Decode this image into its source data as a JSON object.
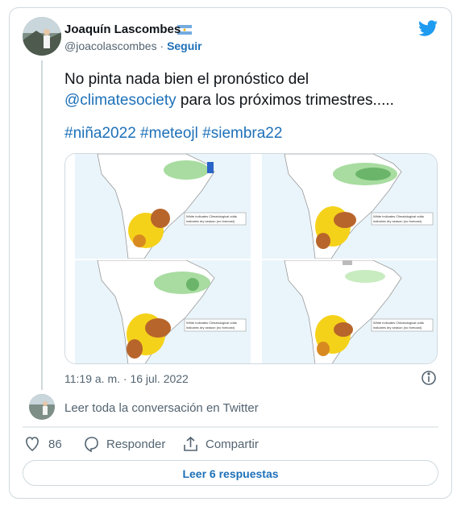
{
  "tweet": {
    "author": {
      "name": "Joaquín Lascombes",
      "handle": "@joacolascombes",
      "follow": "Seguir"
    },
    "text": {
      "line1": "No pinta nada bien el pronóstico del",
      "mention": "@climatesociety",
      "line2": "para los próximos trimestres.....",
      "hashtags": [
        "#niña2022",
        "#meteojl",
        "#siembra22"
      ]
    },
    "image": {
      "legend": [
        "White indicates Climatological odds",
        "indicates dry season (no forecast)"
      ]
    },
    "timestamp": "11:19 a. m. · 16 jul. 2022",
    "conversation": "Leer toda la conversación en Twitter",
    "actions": {
      "likes": "86",
      "reply": "Responder",
      "share": "Compartir"
    },
    "replies_button": "Leer 6 respuestas"
  }
}
